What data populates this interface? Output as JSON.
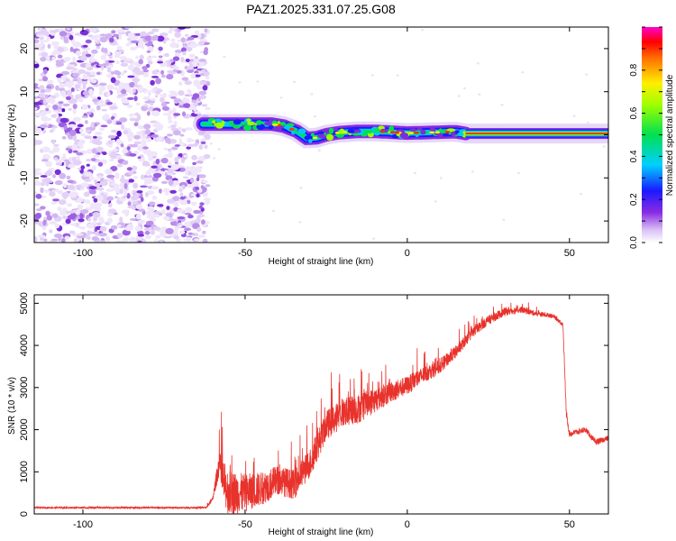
{
  "title": "PAZ1.2025.331.07.25.G08",
  "chart_data": [
    {
      "type": "heatmap",
      "name": "spectrogram",
      "xlabel": "Height of straight line (km)",
      "ylabel": "Frequency (Hz)",
      "xlim": [
        -115,
        62
      ],
      "ylim": [
        -25,
        25
      ],
      "xticks": [
        -100,
        -50,
        0,
        50
      ],
      "yticks": [
        -20,
        -10,
        0,
        10,
        20
      ],
      "noise_region_x": [
        -115,
        -63
      ],
      "signal_track": {
        "x": [
          -63,
          -58,
          -52,
          -47,
          -42,
          -38,
          -34,
          -31,
          -28,
          -25,
          -21,
          -15,
          -10,
          -5,
          0,
          5,
          10,
          15,
          18,
          30,
          40,
          50,
          62
        ],
        "freq": [
          2.5,
          2.5,
          2.5,
          2.5,
          2.5,
          2.0,
          0.8,
          -0.8,
          -0.7,
          0.0,
          0.5,
          0.8,
          0.8,
          0.6,
          0.4,
          0.5,
          0.6,
          0.7,
          0.3,
          0.3,
          0.3,
          0.3,
          0.3
        ]
      },
      "colorbar": {
        "label": "Normalized spectral amplitude",
        "min": 0.0,
        "max": 1.0,
        "ticks": [
          "0.0",
          "0.2",
          "0.4",
          "0.6",
          "0.8"
        ]
      }
    },
    {
      "type": "line",
      "name": "snr",
      "xlabel": "Height of straight line (km)",
      "ylabel": "SNR (10 * v/v)",
      "xlim": [
        -115,
        62
      ],
      "ylim": [
        0,
        5200
      ],
      "xticks": [
        -100,
        -50,
        0,
        50
      ],
      "yticks": [
        0,
        1000,
        2000,
        3000,
        4000,
        5000
      ],
      "series_color": "#e8322c",
      "envelope": {
        "x": [
          -115,
          -62,
          -60,
          -58,
          -57,
          -55,
          -50,
          -45,
          -40,
          -35,
          -30,
          -25,
          -20,
          -15,
          -10,
          -5,
          0,
          5,
          10,
          15,
          20,
          25,
          30,
          35,
          40,
          45,
          48,
          49,
          50,
          55,
          58,
          62
        ],
        "base": [
          150,
          150,
          350,
          1200,
          800,
          500,
          500,
          600,
          800,
          700,
          1200,
          2100,
          2400,
          2500,
          2700,
          2900,
          3050,
          3300,
          3500,
          3850,
          4300,
          4600,
          4800,
          4850,
          4750,
          4700,
          4500,
          2400,
          1900,
          2000,
          1700,
          1800
        ],
        "amp": [
          40,
          40,
          100,
          600,
          1000,
          1100,
          900,
          800,
          700,
          700,
          700,
          700,
          700,
          700,
          600,
          500,
          450,
          400,
          350,
          300,
          250,
          220,
          200,
          150,
          120,
          100,
          100,
          200,
          150,
          120,
          150,
          120
        ]
      }
    }
  ]
}
